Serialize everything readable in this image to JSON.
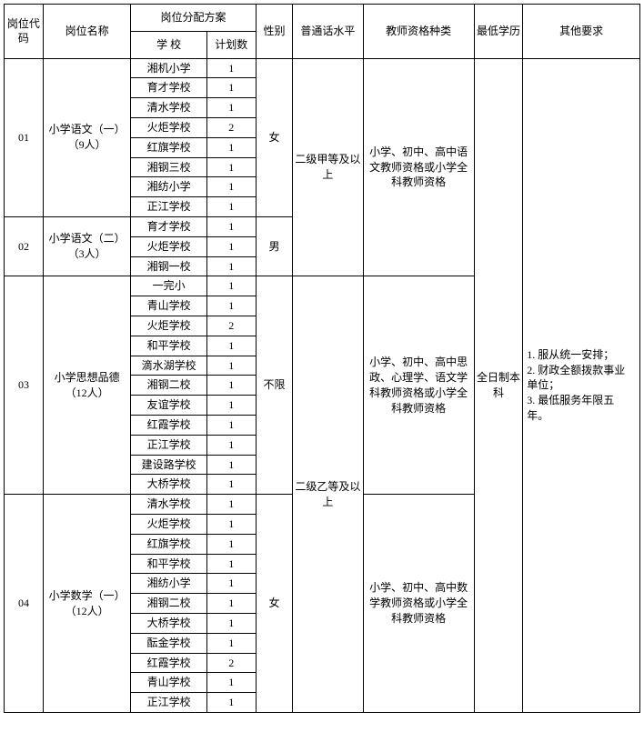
{
  "headers": {
    "code": "岗位代码",
    "name": "岗位名称",
    "alloc": "岗位分配方案",
    "school": "学 校",
    "plan": "计划数",
    "gender": "性别",
    "pth": "普通话水平",
    "qual": "教师资格种类",
    "edu": "最低学历",
    "other": "其他要求"
  },
  "group1": {
    "code": "01",
    "name": "小学语文（一）（9人）",
    "gender": "女",
    "pth": "二级甲等及以上",
    "qual": "小学、初中、高中语文教师资格或小学全科教师资格",
    "rows": [
      {
        "school": "湘机小学",
        "plan": "1"
      },
      {
        "school": "育才学校",
        "plan": "1"
      },
      {
        "school": "清水学校",
        "plan": "1"
      },
      {
        "school": "火炬学校",
        "plan": "2"
      },
      {
        "school": "红旗学校",
        "plan": "1"
      },
      {
        "school": "湘钢三校",
        "plan": "1"
      },
      {
        "school": "湘纺小学",
        "plan": "1"
      },
      {
        "school": "正江学校",
        "plan": "1"
      }
    ]
  },
  "group2": {
    "code": "02",
    "name": "小学语文（二）（3人）",
    "gender": "男",
    "rows": [
      {
        "school": "育才学校",
        "plan": "1"
      },
      {
        "school": "火炬学校",
        "plan": "1"
      },
      {
        "school": "湘钢一校",
        "plan": "1"
      }
    ]
  },
  "group3": {
    "code": "03",
    "name": "小学思想品德（12人）",
    "gender": "不限",
    "qual": "小学、初中、高中思政、心理学、语文学科教师资格或小学全科教师资格",
    "rows": [
      {
        "school": "一完小",
        "plan": "1"
      },
      {
        "school": "青山学校",
        "plan": "1"
      },
      {
        "school": "火炬学校",
        "plan": "2"
      },
      {
        "school": "和平学校",
        "plan": "1"
      },
      {
        "school": "滴水湖学校",
        "plan": "1"
      },
      {
        "school": "湘钢二校",
        "plan": "1"
      },
      {
        "school": "友谊学校",
        "plan": "1"
      },
      {
        "school": "红霞学校",
        "plan": "1"
      },
      {
        "school": "正江学校",
        "plan": "1"
      },
      {
        "school": "建设路学校",
        "plan": "1"
      },
      {
        "school": "大桥学校",
        "plan": "1"
      }
    ]
  },
  "group4": {
    "code": "04",
    "name": "小学数学（一）（12人）",
    "gender": "女",
    "qual": "小学、初中、高中数学教师资格或小学全科教师资格",
    "rows": [
      {
        "school": "清水学校",
        "plan": "1"
      },
      {
        "school": "火炬学校",
        "plan": "1"
      },
      {
        "school": "红旗学校",
        "plan": "1"
      },
      {
        "school": "和平学校",
        "plan": "1"
      },
      {
        "school": "湘纺小学",
        "plan": "1"
      },
      {
        "school": "湘钢二校",
        "plan": "1"
      },
      {
        "school": "大桥学校",
        "plan": "1"
      },
      {
        "school": "酝金学校",
        "plan": "1"
      },
      {
        "school": "红霞学校",
        "plan": "2"
      },
      {
        "school": "青山学校",
        "plan": "1"
      },
      {
        "school": "正江学校",
        "plan": "1"
      }
    ]
  },
  "pth34": "二级乙等及以上",
  "edu": "全日制本科",
  "other": "1. 服从统一安排；\n2. 财政全额拨款事业单位；\n3. 最低服务年限五年。",
  "colors": {
    "border": "#000000",
    "bg": "#ffffff",
    "text": "#000000"
  },
  "fontsize": 12
}
